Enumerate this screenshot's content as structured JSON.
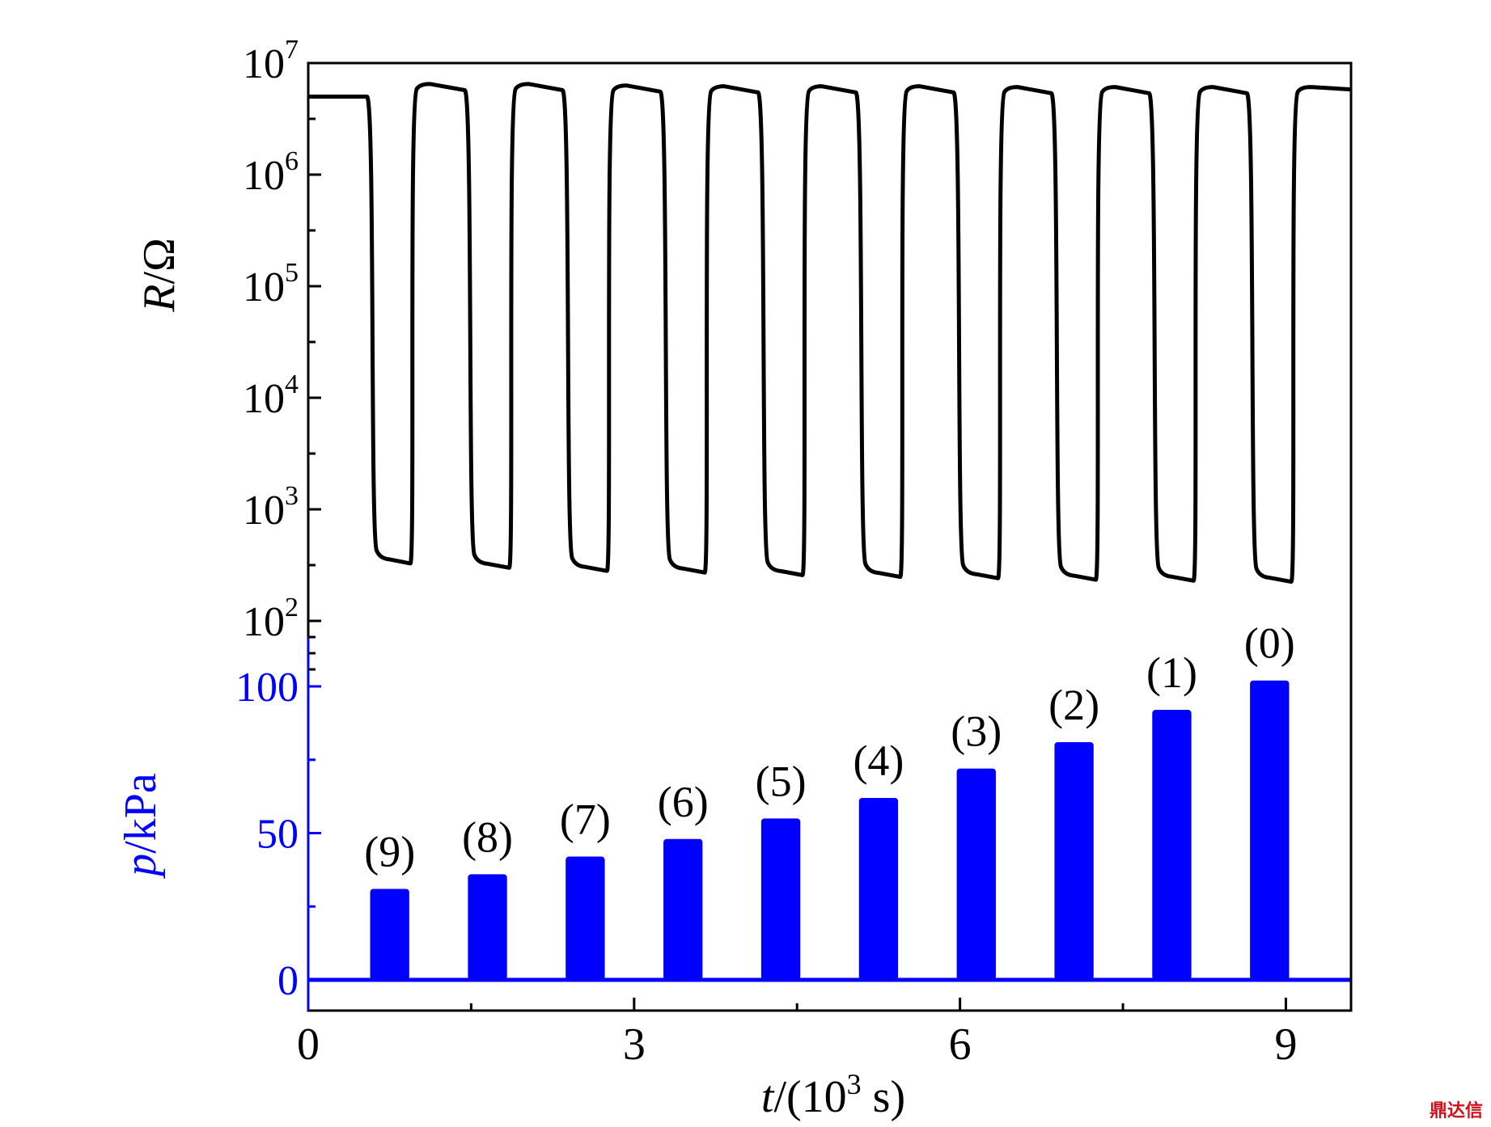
{
  "colors": {
    "axis": "#000000",
    "resistance_line": "#000000",
    "pressure": "#0000ff",
    "watermark": "#d0101b"
  },
  "watermark": "鼎达信",
  "chart_data": {
    "type": "line+bar",
    "x": {
      "label_italic": "t",
      "label_rest": "/(10",
      "label_sup": "3",
      "label_end": " s)",
      "range": [
        0,
        9.6
      ],
      "ticks": [
        0,
        3,
        6,
        9
      ],
      "tick_labels": [
        "0",
        "3",
        "6",
        "9"
      ],
      "minor_ticks": [
        1.5,
        4.5,
        7.5
      ]
    },
    "resistance_axis": {
      "label_italic": "R",
      "label_rest": "/Ω",
      "scale": "log",
      "range": [
        100,
        10000000
      ],
      "tick_labels": [
        {
          "base": "10",
          "exp": "2",
          "value": 100
        },
        {
          "base": "10",
          "exp": "3",
          "value": 1000
        },
        {
          "base": "10",
          "exp": "4",
          "value": 10000
        },
        {
          "base": "10",
          "exp": "5",
          "value": 100000
        },
        {
          "base": "10",
          "exp": "6",
          "value": 1000000
        },
        {
          "base": "10",
          "exp": "7",
          "value": 10000000
        }
      ]
    },
    "pressure_axis": {
      "label_italic": "p",
      "label_rest": "/kPa",
      "range": [
        -10,
        110
      ],
      "ticks": [
        0,
        50,
        100
      ],
      "tick_labels": [
        "0",
        "50",
        "100"
      ],
      "minor_ticks": [
        25,
        75
      ]
    },
    "resistance_series": {
      "baseline_ohm": 5000000,
      "cycles": [
        {
          "drop": 0.6,
          "rise": 0.97,
          "high": 6500000,
          "low": 350
        },
        {
          "drop": 1.5,
          "rise": 1.88,
          "high": 6500000,
          "low": 320
        },
        {
          "drop": 2.4,
          "rise": 2.78,
          "high": 6300000,
          "low": 300
        },
        {
          "drop": 3.3,
          "rise": 3.68,
          "high": 6200000,
          "low": 290
        },
        {
          "drop": 4.2,
          "rise": 4.58,
          "high": 6200000,
          "low": 275
        },
        {
          "drop": 5.1,
          "rise": 5.48,
          "high": 6200000,
          "low": 265
        },
        {
          "drop": 6.0,
          "rise": 6.38,
          "high": 6100000,
          "low": 258
        },
        {
          "drop": 6.9,
          "rise": 7.28,
          "high": 6100000,
          "low": 250
        },
        {
          "drop": 7.8,
          "rise": 8.18,
          "high": 6100000,
          "low": 245
        },
        {
          "drop": 8.7,
          "rise": 9.08,
          "high": 6100000,
          "low": 240
        }
      ],
      "end_x": 9.6,
      "end_ohm": 5800000
    },
    "pressure_bars": [
      {
        "label": "(9)",
        "start": 0.57,
        "end": 0.93,
        "value": 31
      },
      {
        "label": "(8)",
        "start": 1.47,
        "end": 1.83,
        "value": 36
      },
      {
        "label": "(7)",
        "start": 2.37,
        "end": 2.73,
        "value": 42
      },
      {
        "label": "(6)",
        "start": 3.27,
        "end": 3.63,
        "value": 48
      },
      {
        "label": "(5)",
        "start": 4.17,
        "end": 4.53,
        "value": 55
      },
      {
        "label": "(4)",
        "start": 5.07,
        "end": 5.43,
        "value": 62
      },
      {
        "label": "(3)",
        "start": 5.97,
        "end": 6.33,
        "value": 72
      },
      {
        "label": "(2)",
        "start": 6.87,
        "end": 7.23,
        "value": 81
      },
      {
        "label": "(1)",
        "start": 7.77,
        "end": 8.13,
        "value": 92
      },
      {
        "label": "(0)",
        "start": 8.67,
        "end": 9.03,
        "value": 102
      }
    ],
    "grid": false,
    "legend": "none"
  }
}
